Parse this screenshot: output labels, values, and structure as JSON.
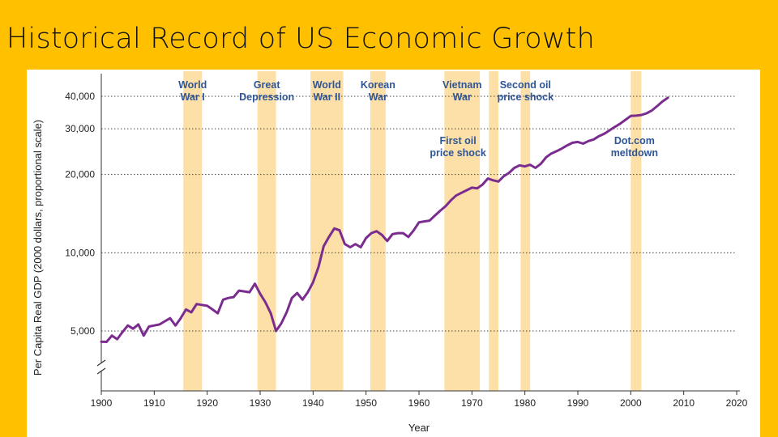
{
  "slide": {
    "title": "Historical Record of US Economic Growth"
  },
  "colors": {
    "background": "#FFC000",
    "line": "#7B2C8F",
    "band": "#FCE0A8",
    "label": "#2F5597"
  },
  "chart_data": {
    "type": "line",
    "title": "Historical Record of US Economic Growth",
    "xlabel": "Year",
    "ylabel": "Per Capita Real GDP (2000 dollars, proportional scale)",
    "yscale": "log",
    "xlim": [
      1900,
      2020
    ],
    "ylim": [
      4000,
      45000
    ],
    "x_ticks": [
      1900,
      1910,
      1920,
      1930,
      1940,
      1950,
      1960,
      1970,
      1980,
      1990,
      2000,
      2010,
      2020
    ],
    "y_ticks": [
      {
        "value": 5000,
        "label": "5,000"
      },
      {
        "value": 10000,
        "label": "10,000"
      },
      {
        "value": 20000,
        "label": "20,000"
      },
      {
        "value": 30000,
        "label": "30,000"
      },
      {
        "value": 40000,
        "label": "40,000"
      }
    ],
    "events": [
      {
        "name": "World War I",
        "lines": [
          "World",
          "War I"
        ],
        "start": 1915.5,
        "end": 1919.0
      },
      {
        "name": "Great Depression",
        "lines": [
          "Great",
          "Depression"
        ],
        "start": 1929.5,
        "end": 1933.0
      },
      {
        "name": "World War II",
        "lines": [
          "World",
          "War II"
        ],
        "start": 1939.5,
        "end": 1945.7
      },
      {
        "name": "Korean War",
        "lines": [
          "Korean",
          "War"
        ],
        "start": 1950.8,
        "end": 1953.7
      },
      {
        "name": "Vietnam War",
        "lines": [
          "Vietnam",
          "War"
        ],
        "start": 1964.8,
        "end": 1971.5
      },
      {
        "name": "First oil price shock",
        "lines": [
          "First oil",
          "price shock"
        ],
        "start": 1973.2,
        "end": 1975.0
      },
      {
        "name": "Second oil price shock",
        "lines": [
          "Second oil",
          "price shock"
        ],
        "start": 1979.2,
        "end": 1981.0
      },
      {
        "name": "Dot.com meltdown",
        "lines": [
          "Dot.com",
          "meltdown"
        ],
        "start": 2000.0,
        "end": 2002.0
      }
    ],
    "series": [
      {
        "name": "Per Capita Real GDP",
        "points": [
          [
            1900,
            4550
          ],
          [
            1901,
            4540
          ],
          [
            1902,
            4800
          ],
          [
            1903,
            4650
          ],
          [
            1904,
            4950
          ],
          [
            1905,
            5250
          ],
          [
            1906,
            5100
          ],
          [
            1907,
            5300
          ],
          [
            1908,
            4800
          ],
          [
            1909,
            5200
          ],
          [
            1910,
            5250
          ],
          [
            1911,
            5300
          ],
          [
            1912,
            5450
          ],
          [
            1913,
            5600
          ],
          [
            1914,
            5250
          ],
          [
            1915,
            5600
          ],
          [
            1916,
            6050
          ],
          [
            1917,
            5900
          ],
          [
            1918,
            6350
          ],
          [
            1919,
            6300
          ],
          [
            1920,
            6250
          ],
          [
            1921,
            6050
          ],
          [
            1922,
            5850
          ],
          [
            1923,
            6600
          ],
          [
            1924,
            6700
          ],
          [
            1925,
            6750
          ],
          [
            1926,
            7150
          ],
          [
            1927,
            7100
          ],
          [
            1928,
            7050
          ],
          [
            1929,
            7600
          ],
          [
            1930,
            6950
          ],
          [
            1931,
            6450
          ],
          [
            1932,
            5850
          ],
          [
            1933,
            5000
          ],
          [
            1934,
            5350
          ],
          [
            1935,
            5900
          ],
          [
            1936,
            6700
          ],
          [
            1937,
            7000
          ],
          [
            1938,
            6600
          ],
          [
            1939,
            7050
          ],
          [
            1940,
            7700
          ],
          [
            1941,
            8800
          ],
          [
            1942,
            10600
          ],
          [
            1943,
            11500
          ],
          [
            1944,
            12400
          ],
          [
            1945,
            12200
          ],
          [
            1946,
            10800
          ],
          [
            1947,
            10500
          ],
          [
            1948,
            10800
          ],
          [
            1949,
            10500
          ],
          [
            1950,
            11400
          ],
          [
            1951,
            11900
          ],
          [
            1952,
            12100
          ],
          [
            1953,
            11700
          ],
          [
            1954,
            11100
          ],
          [
            1955,
            11800
          ],
          [
            1956,
            11900
          ],
          [
            1957,
            11900
          ],
          [
            1958,
            11500
          ],
          [
            1959,
            12200
          ],
          [
            1960,
            13100
          ],
          [
            1961,
            13200
          ],
          [
            1962,
            13300
          ],
          [
            1963,
            13900
          ],
          [
            1964,
            14500
          ],
          [
            1965,
            15100
          ],
          [
            1966,
            15900
          ],
          [
            1967,
            16600
          ],
          [
            1968,
            17000
          ],
          [
            1969,
            17400
          ],
          [
            1970,
            17800
          ],
          [
            1971,
            17700
          ],
          [
            1972,
            18300
          ],
          [
            1973,
            19300
          ],
          [
            1974,
            19000
          ],
          [
            1975,
            18800
          ],
          [
            1976,
            19700
          ],
          [
            1977,
            20300
          ],
          [
            1978,
            21200
          ],
          [
            1979,
            21700
          ],
          [
            1980,
            21500
          ],
          [
            1981,
            21800
          ],
          [
            1982,
            21200
          ],
          [
            1983,
            22000
          ],
          [
            1984,
            23300
          ],
          [
            1985,
            24100
          ],
          [
            1986,
            24600
          ],
          [
            1987,
            25200
          ],
          [
            1988,
            25900
          ],
          [
            1989,
            26500
          ],
          [
            1990,
            26700
          ],
          [
            1991,
            26300
          ],
          [
            1992,
            26900
          ],
          [
            1993,
            27300
          ],
          [
            1994,
            28100
          ],
          [
            1995,
            28700
          ],
          [
            1996,
            29600
          ],
          [
            1997,
            30500
          ],
          [
            1998,
            31400
          ],
          [
            1999,
            32500
          ],
          [
            2000,
            33600
          ],
          [
            2001,
            33700
          ],
          [
            2002,
            33900
          ],
          [
            2003,
            34400
          ],
          [
            2004,
            35300
          ],
          [
            2005,
            36700
          ],
          [
            2006,
            38200
          ],
          [
            2007,
            39500
          ]
        ]
      }
    ]
  }
}
